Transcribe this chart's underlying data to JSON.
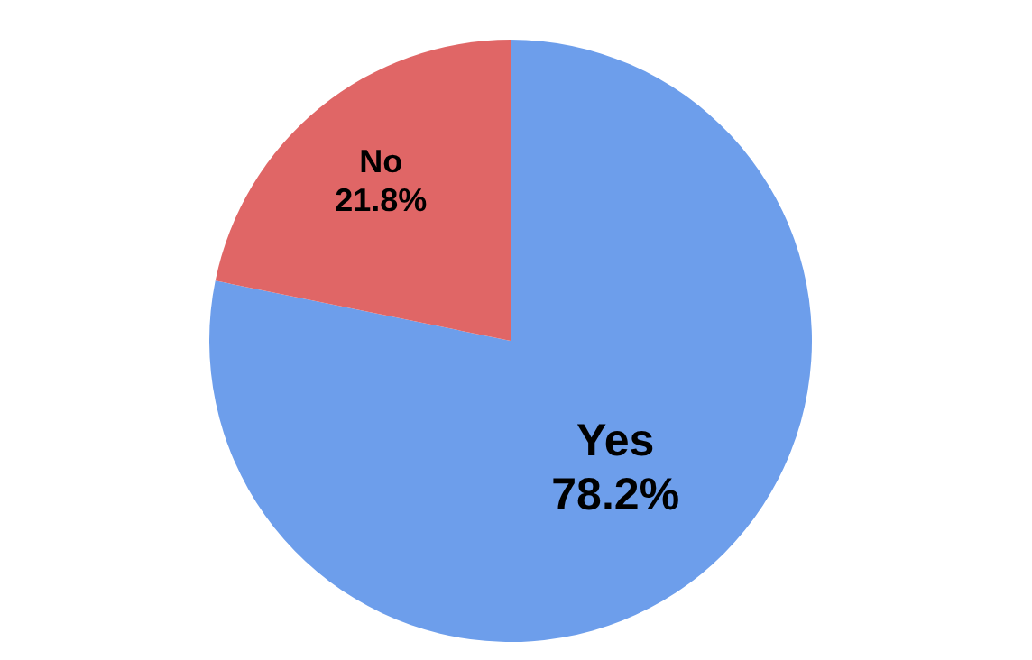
{
  "chart_data": {
    "type": "pie",
    "categories": [
      "Yes",
      "No"
    ],
    "values": [
      78.2,
      21.8
    ],
    "value_labels": [
      "78.2%",
      "21.8%"
    ],
    "colors": [
      "#6d9eeb",
      "#e06666"
    ],
    "legend": false
  }
}
